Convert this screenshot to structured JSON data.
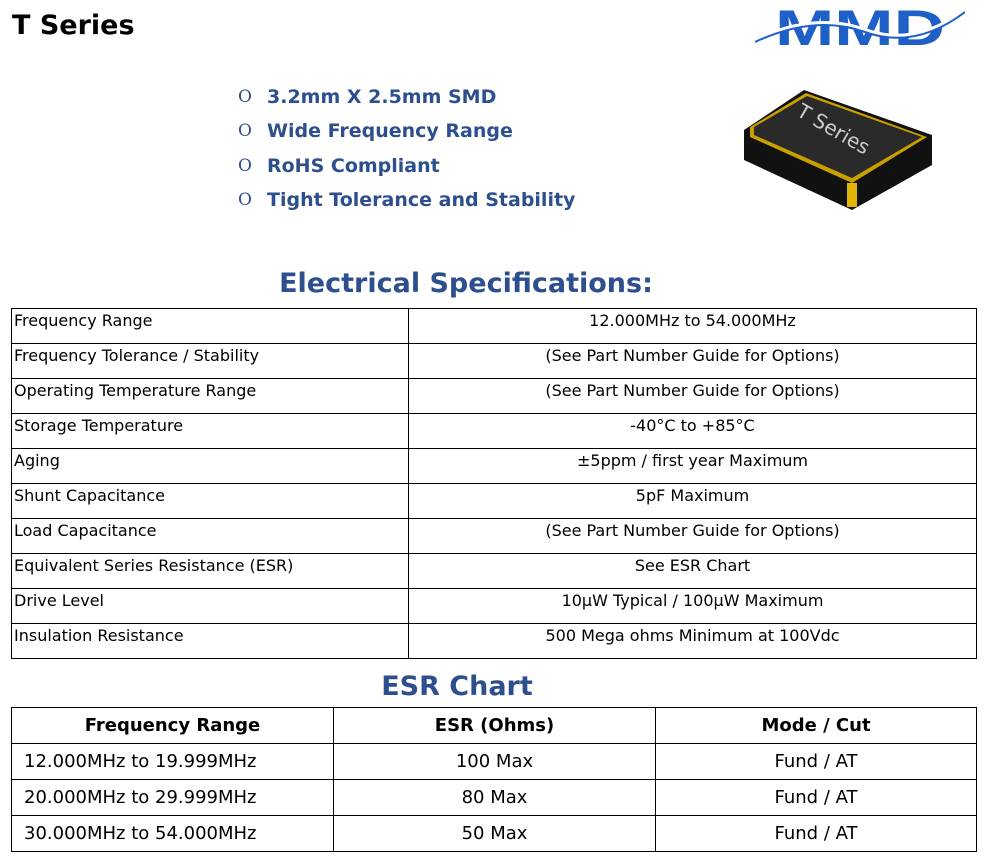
{
  "title": "T Series",
  "logo_text": "MMD",
  "product_image_label": "T Series",
  "features": [
    "3.2mm X 2.5mm SMD",
    "Wide Frequency Range",
    "RoHS Compliant",
    "Tight Tolerance and Stability"
  ],
  "bullet_glyph": "O",
  "spec_title": "Electrical Specifications:",
  "spec_rows": [
    {
      "label": "Frequency Range",
      "value": "12.000MHz to 54.000MHz"
    },
    {
      "label": "Frequency Tolerance / Stability",
      "value": "(See Part Number Guide for Options)"
    },
    {
      "label": "Operating Temperature Range",
      "value": "(See Part Number Guide for Options)"
    },
    {
      "label": "Storage Temperature",
      "value": "-40°C to +85°C"
    },
    {
      "label": "Aging",
      "value": "±5ppm / first year Maximum"
    },
    {
      "label": "Shunt Capacitance",
      "value": "5pF Maximum"
    },
    {
      "label": "Load Capacitance",
      "value": "(See Part Number Guide for Options)"
    },
    {
      "label": "Equivalent Series Resistance (ESR)",
      "value": "See ESR Chart"
    },
    {
      "label": "Drive Level",
      "value": "10µW Typical / 100µW Maximum"
    },
    {
      "label": "Insulation Resistance",
      "value": "500 Mega ohms Minimum at 100Vdc"
    }
  ],
  "esr_title": "ESR Chart",
  "esr_headers": [
    "Frequency Range",
    "ESR (Ohms)",
    "Mode / Cut"
  ],
  "esr_rows": [
    [
      "12.000MHz to 19.999MHz",
      "100 Max",
      "Fund / AT"
    ],
    [
      "20.000MHz to 29.999MHz",
      "80 Max",
      "Fund / AT"
    ],
    [
      "30.000MHz to 54.000MHz",
      "50 Max",
      "Fund / AT"
    ]
  ],
  "colors": {
    "heading": "#2d4f8e",
    "logo": "#1f5fc8",
    "chip_gold": "#d4a800"
  }
}
